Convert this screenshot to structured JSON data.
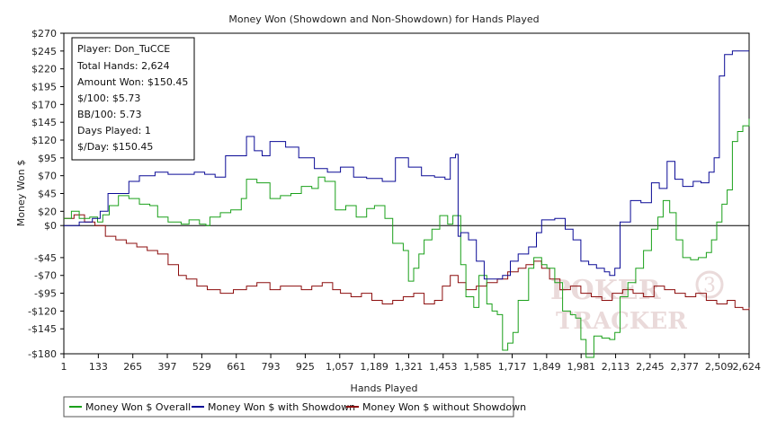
{
  "colors": {
    "overall": "#1aa01a",
    "showdown": "#0a0a96",
    "non_showdown": "#8c0d0d"
  },
  "stats_box": {
    "lines": [
      "Player: Don_TuCCE",
      "Total Hands: 2,624",
      "Amount Won: $150.45",
      "$/100: $5.73",
      "BB/100: 5.73",
      "Days Played: 1",
      "$/Day: $150.45"
    ]
  },
  "watermark": {
    "line1": "POKER",
    "line2": "TRACKER",
    "badge": "3"
  },
  "chart_data": {
    "type": "line",
    "title": "Money Won (Showdown and Non-Showdown) for Hands Played",
    "xlabel": "Hands Played",
    "ylabel": "Money Won $",
    "xlim": [
      1,
      2624
    ],
    "ylim": [
      -180,
      270
    ],
    "x_ticks": [
      1,
      133,
      265,
      397,
      529,
      661,
      793,
      925,
      1057,
      1189,
      1321,
      1453,
      1585,
      1717,
      1849,
      1981,
      2113,
      2245,
      2377,
      2509,
      2624
    ],
    "x_tick_labels": [
      "1",
      "133",
      "265",
      "397",
      "529",
      "661",
      "793",
      "925",
      "1,057",
      "1,189",
      "1,321",
      "1,453",
      "1,585",
      "1,717",
      "1,849",
      "1,981",
      "2,113",
      "2,245",
      "2,377",
      "2,509",
      "2,624"
    ],
    "y_ticks": [
      270,
      245,
      220,
      195,
      170,
      145,
      120,
      95,
      70,
      45,
      20,
      0,
      -45,
      -70,
      -95,
      -120,
      -145,
      -180
    ],
    "y_tick_labels": [
      "$270",
      "$245",
      "$220",
      "$195",
      "$170",
      "$145",
      "$120",
      "$95",
      "$70",
      "$45",
      "$20",
      "$0",
      "-$45",
      "-$70",
      "-$95",
      "-$120",
      "-$145",
      "-$180"
    ],
    "grid": false,
    "legend_position": "bottom-left",
    "series": [
      {
        "name": "Money Won $ Overall",
        "color": "#1aa01a",
        "points": [
          [
            1,
            10
          ],
          [
            30,
            20
          ],
          [
            60,
            10
          ],
          [
            100,
            12
          ],
          [
            130,
            5
          ],
          [
            150,
            15
          ],
          [
            175,
            28
          ],
          [
            210,
            42
          ],
          [
            250,
            38
          ],
          [
            290,
            30
          ],
          [
            330,
            28
          ],
          [
            360,
            12
          ],
          [
            400,
            5
          ],
          [
            450,
            2
          ],
          [
            480,
            8
          ],
          [
            520,
            2
          ],
          [
            545,
            0
          ],
          [
            560,
            12
          ],
          [
            600,
            18
          ],
          [
            640,
            22
          ],
          [
            680,
            38
          ],
          [
            700,
            65
          ],
          [
            740,
            60
          ],
          [
            790,
            38
          ],
          [
            830,
            42
          ],
          [
            870,
            45
          ],
          [
            910,
            55
          ],
          [
            950,
            52
          ],
          [
            975,
            68
          ],
          [
            1000,
            62
          ],
          [
            1040,
            22
          ],
          [
            1080,
            28
          ],
          [
            1120,
            12
          ],
          [
            1160,
            24
          ],
          [
            1190,
            28
          ],
          [
            1230,
            10
          ],
          [
            1260,
            -25
          ],
          [
            1300,
            -35
          ],
          [
            1320,
            -78
          ],
          [
            1340,
            -60
          ],
          [
            1360,
            -40
          ],
          [
            1380,
            -20
          ],
          [
            1410,
            -5
          ],
          [
            1440,
            14
          ],
          [
            1470,
            2
          ],
          [
            1490,
            14
          ],
          [
            1520,
            -55
          ],
          [
            1540,
            -100
          ],
          [
            1570,
            -115
          ],
          [
            1590,
            -70
          ],
          [
            1620,
            -110
          ],
          [
            1640,
            -120
          ],
          [
            1660,
            -125
          ],
          [
            1680,
            -175
          ],
          [
            1700,
            -165
          ],
          [
            1720,
            -150
          ],
          [
            1740,
            -105
          ],
          [
            1780,
            -60
          ],
          [
            1800,
            -45
          ],
          [
            1830,
            -55
          ],
          [
            1850,
            -60
          ],
          [
            1880,
            -80
          ],
          [
            1910,
            -120
          ],
          [
            1940,
            -125
          ],
          [
            1960,
            -130
          ],
          [
            1980,
            -160
          ],
          [
            2000,
            -185
          ],
          [
            2030,
            -155
          ],
          [
            2060,
            -158
          ],
          [
            2090,
            -160
          ],
          [
            2110,
            -150
          ],
          [
            2130,
            -100
          ],
          [
            2160,
            -80
          ],
          [
            2190,
            -60
          ],
          [
            2220,
            -35
          ],
          [
            2250,
            -5
          ],
          [
            2275,
            12
          ],
          [
            2295,
            35
          ],
          [
            2320,
            18
          ],
          [
            2345,
            -20
          ],
          [
            2370,
            -45
          ],
          [
            2400,
            -48
          ],
          [
            2430,
            -45
          ],
          [
            2460,
            -38
          ],
          [
            2480,
            -20
          ],
          [
            2500,
            5
          ],
          [
            2520,
            30
          ],
          [
            2540,
            50
          ],
          [
            2560,
            118
          ],
          [
            2580,
            132
          ],
          [
            2600,
            140
          ],
          [
            2624,
            150
          ]
        ]
      },
      {
        "name": "Money Won $ with Showdown",
        "color": "#0a0a96",
        "points": [
          [
            1,
            0
          ],
          [
            60,
            5
          ],
          [
            110,
            10
          ],
          [
            140,
            20
          ],
          [
            170,
            45
          ],
          [
            220,
            45
          ],
          [
            250,
            62
          ],
          [
            290,
            70
          ],
          [
            350,
            75
          ],
          [
            400,
            72
          ],
          [
            460,
            72
          ],
          [
            500,
            75
          ],
          [
            540,
            72
          ],
          [
            580,
            68
          ],
          [
            620,
            98
          ],
          [
            660,
            98
          ],
          [
            700,
            125
          ],
          [
            730,
            105
          ],
          [
            760,
            98
          ],
          [
            790,
            118
          ],
          [
            850,
            110
          ],
          [
            900,
            95
          ],
          [
            960,
            80
          ],
          [
            1010,
            75
          ],
          [
            1060,
            82
          ],
          [
            1110,
            68
          ],
          [
            1160,
            66
          ],
          [
            1220,
            62
          ],
          [
            1270,
            95
          ],
          [
            1320,
            82
          ],
          [
            1370,
            70
          ],
          [
            1420,
            68
          ],
          [
            1460,
            65
          ],
          [
            1480,
            95
          ],
          [
            1500,
            100
          ],
          [
            1510,
            -15
          ],
          [
            1520,
            -10
          ],
          [
            1550,
            -20
          ],
          [
            1580,
            -50
          ],
          [
            1610,
            -75
          ],
          [
            1640,
            -75
          ],
          [
            1680,
            -70
          ],
          [
            1710,
            -50
          ],
          [
            1740,
            -40
          ],
          [
            1780,
            -30
          ],
          [
            1810,
            -10
          ],
          [
            1830,
            8
          ],
          [
            1880,
            10
          ],
          [
            1920,
            -5
          ],
          [
            1950,
            -20
          ],
          [
            1980,
            -50
          ],
          [
            2010,
            -55
          ],
          [
            2040,
            -60
          ],
          [
            2070,
            -65
          ],
          [
            2090,
            -70
          ],
          [
            2110,
            -60
          ],
          [
            2130,
            5
          ],
          [
            2170,
            35
          ],
          [
            2210,
            32
          ],
          [
            2250,
            60
          ],
          [
            2280,
            52
          ],
          [
            2310,
            90
          ],
          [
            2340,
            65
          ],
          [
            2370,
            55
          ],
          [
            2410,
            62
          ],
          [
            2440,
            60
          ],
          [
            2470,
            75
          ],
          [
            2490,
            95
          ],
          [
            2510,
            210
          ],
          [
            2530,
            240
          ],
          [
            2560,
            245
          ],
          [
            2624,
            245
          ]
        ]
      },
      {
        "name": "Money Won $ without Showdown",
        "color": "#8c0d0d",
        "points": [
          [
            1,
            10
          ],
          [
            40,
            15
          ],
          [
            80,
            5
          ],
          [
            120,
            0
          ],
          [
            160,
            -15
          ],
          [
            200,
            -20
          ],
          [
            240,
            -25
          ],
          [
            280,
            -30
          ],
          [
            320,
            -35
          ],
          [
            360,
            -40
          ],
          [
            400,
            -55
          ],
          [
            440,
            -70
          ],
          [
            470,
            -75
          ],
          [
            510,
            -85
          ],
          [
            550,
            -90
          ],
          [
            600,
            -95
          ],
          [
            650,
            -90
          ],
          [
            700,
            -85
          ],
          [
            740,
            -80
          ],
          [
            790,
            -90
          ],
          [
            830,
            -85
          ],
          [
            870,
            -85
          ],
          [
            910,
            -90
          ],
          [
            950,
            -85
          ],
          [
            990,
            -80
          ],
          [
            1030,
            -90
          ],
          [
            1060,
            -95
          ],
          [
            1100,
            -100
          ],
          [
            1140,
            -95
          ],
          [
            1180,
            -105
          ],
          [
            1220,
            -110
          ],
          [
            1260,
            -105
          ],
          [
            1300,
            -100
          ],
          [
            1340,
            -95
          ],
          [
            1380,
            -110
          ],
          [
            1420,
            -105
          ],
          [
            1450,
            -85
          ],
          [
            1480,
            -70
          ],
          [
            1510,
            -80
          ],
          [
            1540,
            -90
          ],
          [
            1580,
            -85
          ],
          [
            1620,
            -80
          ],
          [
            1660,
            -75
          ],
          [
            1700,
            -65
          ],
          [
            1740,
            -60
          ],
          [
            1770,
            -55
          ],
          [
            1800,
            -50
          ],
          [
            1830,
            -60
          ],
          [
            1860,
            -75
          ],
          [
            1900,
            -90
          ],
          [
            1940,
            -85
          ],
          [
            1980,
            -95
          ],
          [
            2020,
            -100
          ],
          [
            2060,
            -105
          ],
          [
            2100,
            -95
          ],
          [
            2140,
            -90
          ],
          [
            2180,
            -95
          ],
          [
            2220,
            -100
          ],
          [
            2260,
            -85
          ],
          [
            2300,
            -90
          ],
          [
            2340,
            -95
          ],
          [
            2380,
            -100
          ],
          [
            2420,
            -95
          ],
          [
            2460,
            -105
          ],
          [
            2500,
            -110
          ],
          [
            2540,
            -105
          ],
          [
            2570,
            -115
          ],
          [
            2600,
            -118
          ],
          [
            2624,
            -115
          ]
        ]
      }
    ]
  }
}
